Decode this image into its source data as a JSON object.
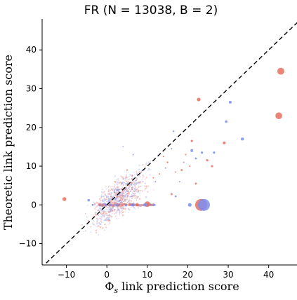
{
  "chart_data": {
    "type": "scatter",
    "title": "FR (N = 13038, B = 2)",
    "xlabel": "Φ",
    "xlabel_sub": "s",
    "xlabel_rest": " link prediction score",
    "ylabel": "Theoretic link prediction score",
    "xlim": [
      -16,
      47
    ],
    "ylim": [
      -15.5,
      48
    ],
    "xticks": [
      -10,
      0,
      10,
      20,
      30,
      40
    ],
    "yticks": [
      -10,
      0,
      10,
      20,
      30,
      40
    ],
    "xtick_labels": [
      "−10",
      "0",
      "10",
      "20",
      "30",
      "40"
    ],
    "ytick_labels": [
      "−10",
      "0",
      "10",
      "20",
      "30",
      "40"
    ],
    "diagonal": "y = x",
    "colors": {
      "red": "#e8705f",
      "blue": "#7b8ef0"
    },
    "series": [
      {
        "color": "red",
        "points": [
          {
            "x": 43.0,
            "y": 34.5,
            "s": 5.0
          },
          {
            "x": 42.5,
            "y": 23.0,
            "s": 4.8
          },
          {
            "x": 23.3,
            "y": 0.0,
            "s": 8.5
          },
          {
            "x": 22.7,
            "y": 27.2,
            "s": 2.6
          },
          {
            "x": 29.0,
            "y": 16.0,
            "s": 2.0
          },
          {
            "x": 21.0,
            "y": 16.5,
            "s": 1.6
          },
          {
            "x": 24.8,
            "y": 11.5,
            "s": 1.6
          },
          {
            "x": 26.0,
            "y": 10.0,
            "s": 1.6
          },
          {
            "x": 18.5,
            "y": 9.0,
            "s": 1.4
          },
          {
            "x": 22.0,
            "y": 5.5,
            "s": 1.4
          },
          {
            "x": 10.0,
            "y": 0.2,
            "s": 4.0
          },
          {
            "x": 7.5,
            "y": 0.0,
            "s": 1.8
          },
          {
            "x": -10.5,
            "y": 1.5,
            "s": 2.8
          },
          {
            "x": 16.0,
            "y": 2.8,
            "s": 1.4
          },
          {
            "x": 15.0,
            "y": 11.0,
            "s": 1.2
          },
          {
            "x": 13.0,
            "y": 8.0,
            "s": 1.0
          },
          {
            "x": 11.5,
            "y": 7.0,
            "s": 1.0
          },
          {
            "x": 17.0,
            "y": 8.5,
            "s": 1.0
          },
          {
            "x": 19.5,
            "y": 13.0,
            "s": 1.0
          },
          {
            "x": 20.5,
            "y": 10.0,
            "s": 1.0
          },
          {
            "x": 5.0,
            "y": 9.0,
            "s": 1.0
          },
          {
            "x": 2.0,
            "y": 6.0,
            "s": 0.9
          },
          {
            "x": 14.0,
            "y": 12.5,
            "s": 1.0
          }
        ]
      },
      {
        "color": "blue",
        "points": [
          {
            "x": 24.0,
            "y": 0.0,
            "s": 8.5
          },
          {
            "x": 20.5,
            "y": 0.0,
            "s": 2.6
          },
          {
            "x": 33.5,
            "y": 17.0,
            "s": 2.2
          },
          {
            "x": 30.5,
            "y": 26.5,
            "s": 2.0
          },
          {
            "x": 29.5,
            "y": 21.5,
            "s": 1.8
          },
          {
            "x": 21.0,
            "y": 14.0,
            "s": 2.0
          },
          {
            "x": 23.5,
            "y": 13.5,
            "s": 1.6
          },
          {
            "x": 26.5,
            "y": 13.5,
            "s": 1.6
          },
          {
            "x": 22.0,
            "y": 12.0,
            "s": 1.4
          },
          {
            "x": 16.5,
            "y": 19.0,
            "s": 1.2
          },
          {
            "x": -4.5,
            "y": 1.2,
            "s": 1.8
          },
          {
            "x": -3.5,
            "y": 0.0,
            "s": 1.4
          },
          {
            "x": 9.5,
            "y": 0.0,
            "s": 2.4
          },
          {
            "x": 17.0,
            "y": 2.2,
            "s": 1.4
          },
          {
            "x": 12.0,
            "y": 6.0,
            "s": 1.0
          },
          {
            "x": 14.5,
            "y": 9.5,
            "s": 1.0
          },
          {
            "x": 18.0,
            "y": 6.0,
            "s": 1.0
          },
          {
            "x": 6.5,
            "y": 13.0,
            "s": 1.0
          },
          {
            "x": 4.0,
            "y": 15.0,
            "s": 0.9
          },
          {
            "x": 19.0,
            "y": 11.0,
            "s": 1.0
          },
          {
            "x": 16.0,
            "y": 14.5,
            "s": 1.0
          }
        ]
      }
    ]
  }
}
